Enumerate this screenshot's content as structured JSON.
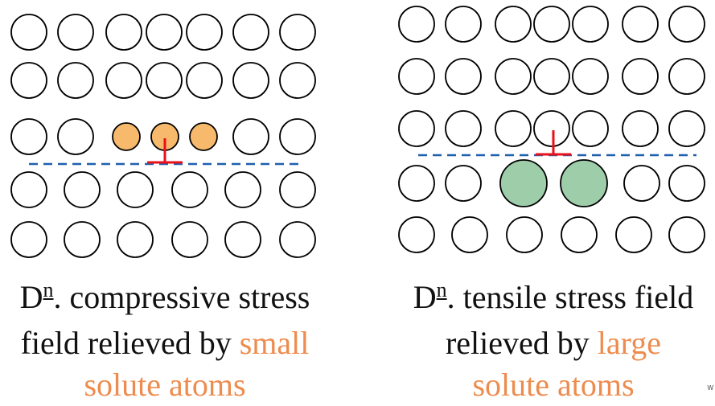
{
  "colors": {
    "atom_stroke": "#000000",
    "small_solute_fill": "#F7B96B",
    "large_solute_fill": "#9ECDAA",
    "dislocation": "#E8101A",
    "slip_plane": "#1F5FAE",
    "highlight_text": "#ED8C4E"
  },
  "left_panel": {
    "caption": {
      "prefix": "D",
      "sup": "n",
      "line1_rest": ". compressive stress",
      "line2_plain": "field relieved by ",
      "line2_highlight": "small",
      "line3_highlight": "solute atoms"
    }
  },
  "right_panel": {
    "caption": {
      "prefix": "D",
      "sup": "n",
      "line1_rest": ". tensile stress field",
      "line2_plain": "relieved by ",
      "line2_highlight": "large",
      "line3_highlight": "solute atoms"
    }
  },
  "corner_text": "W"
}
